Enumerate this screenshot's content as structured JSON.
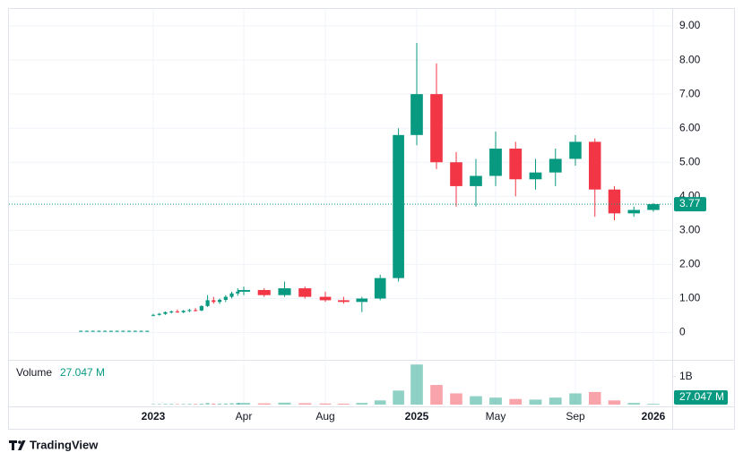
{
  "chart_data": {
    "type": "candlestick",
    "x": [
      "2022-01",
      "2022-02",
      "2022-03",
      "2022-04",
      "2022-05",
      "2022-06",
      "2022-07",
      "2022-08",
      "2022-09",
      "2022-10",
      "2022-11",
      "2022-12",
      "2023-01",
      "2023-02",
      "2023-03",
      "2023-04",
      "2023-05",
      "2023-06",
      "2023-07",
      "2023-08",
      "2023-09",
      "2023-10",
      "2023-11",
      "2023-12",
      "2024-01",
      "2024-02",
      "2024-03",
      "2024-04",
      "2024-05",
      "2024-06",
      "2024-07",
      "2024-08",
      "2024-09",
      "2024-10",
      "2024-11",
      "2024-12",
      "2025-01",
      "2025-02",
      "2025-03",
      "2025-04",
      "2025-05",
      "2025-06",
      "2025-07",
      "2025-08",
      "2025-09",
      "2025-10",
      "2025-11",
      "2025-12",
      "2026-01"
    ],
    "open": [
      0.05,
      0.05,
      0.05,
      0.05,
      0.05,
      0.05,
      0.05,
      0.05,
      0.05,
      0.05,
      0.05,
      0.05,
      0.5,
      0.52,
      0.55,
      0.6,
      0.62,
      0.6,
      0.64,
      0.66,
      0.65,
      0.78,
      0.95,
      0.9,
      0.96,
      1.05,
      1.15,
      1.2,
      1.25,
      1.1,
      1.3,
      1.05,
      0.95,
      0.9,
      1.0,
      1.6,
      5.8,
      7.0,
      5.0,
      4.3,
      4.6,
      5.4,
      4.5,
      4.7,
      5.1,
      5.6,
      4.2,
      3.5,
      3.6
    ],
    "high": [
      0.06,
      0.06,
      0.06,
      0.06,
      0.06,
      0.06,
      0.06,
      0.06,
      0.06,
      0.06,
      0.06,
      0.06,
      0.55,
      0.58,
      0.62,
      0.65,
      0.68,
      0.66,
      0.7,
      0.72,
      0.8,
      1.1,
      1.05,
      1.0,
      1.1,
      1.2,
      1.3,
      1.35,
      1.3,
      1.5,
      1.35,
      1.2,
      1.05,
      1.05,
      1.7,
      6.0,
      8.5,
      7.9,
      5.3,
      5.1,
      5.9,
      5.6,
      5.1,
      5.4,
      5.8,
      5.7,
      4.3,
      3.7,
      3.8
    ],
    "low": [
      0.04,
      0.04,
      0.04,
      0.04,
      0.04,
      0.04,
      0.04,
      0.04,
      0.04,
      0.04,
      0.04,
      0.04,
      0.48,
      0.5,
      0.52,
      0.56,
      0.58,
      0.57,
      0.6,
      0.62,
      0.63,
      0.75,
      0.85,
      0.84,
      0.9,
      1.0,
      1.08,
      1.1,
      1.05,
      1.05,
      1.0,
      0.9,
      0.85,
      0.6,
      0.95,
      1.5,
      5.5,
      4.8,
      3.7,
      3.7,
      4.3,
      4.0,
      4.2,
      4.3,
      4.9,
      3.4,
      3.3,
      3.4,
      3.55
    ],
    "close": [
      0.05,
      0.05,
      0.05,
      0.05,
      0.05,
      0.05,
      0.05,
      0.05,
      0.05,
      0.05,
      0.05,
      0.05,
      0.52,
      0.55,
      0.6,
      0.62,
      0.6,
      0.64,
      0.66,
      0.65,
      0.78,
      0.95,
      0.9,
      0.96,
      1.05,
      1.15,
      1.2,
      1.25,
      1.1,
      1.3,
      1.05,
      0.95,
      0.9,
      1.0,
      1.6,
      5.8,
      7.0,
      5.0,
      4.3,
      4.6,
      5.4,
      4.5,
      4.7,
      5.1,
      5.6,
      4.2,
      3.5,
      3.6,
      3.77
    ],
    "up_color": "#089981",
    "down_color": "#f23645",
    "ylim": [
      -0.8,
      9.5
    ],
    "yticks": [
      0,
      {
        "value": 1,
        "label": "1.00"
      },
      {
        "value": 2,
        "label": "2.00"
      },
      {
        "value": 3,
        "label": "3.00"
      },
      {
        "value": 4,
        "label": "4.00"
      },
      {
        "value": 5,
        "label": "5.00"
      },
      {
        "value": 6,
        "label": "6.00"
      },
      {
        "value": 7,
        "label": "7.00"
      },
      {
        "value": 8,
        "label": "8.00"
      },
      {
        "value": 9,
        "label": "9.00"
      }
    ],
    "xticks": [
      {
        "value": "2023-01",
        "label": "2023"
      },
      {
        "value": "2024-04",
        "label": "Apr"
      },
      {
        "value": "2024-08",
        "label": "Aug"
      },
      {
        "value": "2025-01",
        "label": "2025"
      },
      {
        "value": "2025-05",
        "label": "May"
      },
      {
        "value": "2025-09",
        "label": "Sep"
      },
      {
        "value": "2026-01",
        "label": "2026"
      }
    ],
    "grid": true,
    "volume": {
      "name": "Volume",
      "values": [
        null,
        null,
        null,
        null,
        null,
        null,
        null,
        null,
        null,
        null,
        null,
        null,
        18000000,
        20000000,
        22000000,
        25000000,
        20000000,
        24000000,
        26000000,
        22000000,
        30000000,
        60000000,
        40000000,
        35000000,
        40000000,
        50000000,
        55000000,
        60000000,
        45000000,
        70000000,
        50000000,
        40000000,
        35000000,
        60000000,
        150000000,
        500000000,
        1430000000,
        700000000,
        400000000,
        300000000,
        250000000,
        200000000,
        180000000,
        250000000,
        400000000,
        450000000,
        150000000,
        60000000,
        27047000
      ],
      "value_labels": [
        null,
        null,
        null,
        null,
        null,
        null,
        null,
        null,
        null,
        null,
        null,
        null,
        null,
        null,
        null,
        null,
        null,
        null,
        null,
        null,
        null,
        null,
        null,
        null,
        null,
        null,
        null,
        null,
        null,
        null,
        null,
        null,
        null,
        null,
        null,
        null,
        null,
        null,
        null,
        null,
        null,
        null,
        null,
        null,
        null,
        null,
        null,
        null,
        "27.047 M"
      ],
      "ylim": [
        0,
        1500000000
      ],
      "yticks": [
        {
          "value": 1000000000,
          "label": "1B"
        }
      ]
    },
    "branding": "TradingView"
  }
}
